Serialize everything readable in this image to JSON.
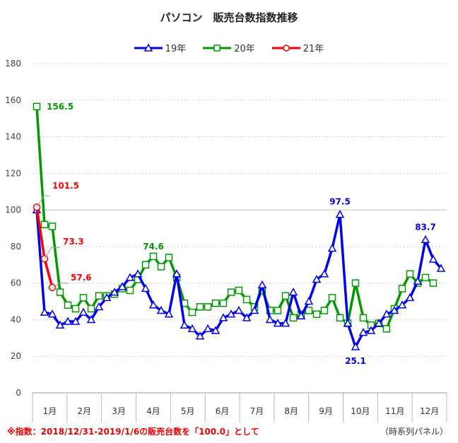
{
  "chart_data": {
    "type": "line",
    "title": "パソコン　販売台数指数推移",
    "ylim": [
      0,
      180
    ],
    "yticks": [
      0,
      20,
      40,
      60,
      80,
      100,
      120,
      140,
      160,
      180
    ],
    "grid": true,
    "legend_position": "top",
    "x_month_labels": [
      "1月",
      "2月",
      "3月",
      "4月",
      "5月",
      "6月",
      "7月",
      "8月",
      "9月",
      "10月",
      "11月",
      "12月"
    ],
    "series": [
      {
        "name": "19年",
        "color": "#0000ee",
        "marker": "triangle",
        "values": [
          100,
          44,
          43,
          37,
          39,
          39,
          44,
          40,
          47,
          52,
          55,
          58,
          63,
          65,
          57,
          48,
          45,
          43,
          65,
          37,
          35,
          31,
          35,
          34,
          41,
          43,
          45,
          41,
          45,
          59,
          40,
          38,
          38,
          55,
          42,
          50,
          62,
          65,
          79,
          97.5,
          38,
          25.1,
          33,
          34,
          38,
          43,
          45,
          48,
          52,
          61,
          83.7,
          73,
          68
        ]
      },
      {
        "name": "20年",
        "color": "#009900",
        "marker": "square",
        "values": [
          156.5,
          92,
          91,
          55,
          48,
          46,
          52,
          46,
          53,
          53,
          54,
          57,
          56,
          62,
          70,
          74.6,
          69,
          74,
          63,
          49,
          44,
          47,
          47,
          49,
          49,
          55,
          56,
          51,
          47,
          56,
          45,
          45,
          53,
          41,
          43,
          45,
          43,
          45,
          52,
          41,
          38,
          60,
          41,
          37,
          38,
          35,
          46,
          57,
          65,
          60,
          63,
          60
        ]
      },
      {
        "name": "21年",
        "color": "#ff0000",
        "marker": "circle",
        "values": [
          101.5,
          73.3,
          57.6
        ]
      }
    ],
    "annotations": [
      {
        "text": "156.5",
        "series": "20年",
        "index": 0
      },
      {
        "text": "74.6",
        "series": "20年",
        "index": 15
      },
      {
        "text": "101.5",
        "series": "21年",
        "index": 0
      },
      {
        "text": "73.3",
        "series": "21年",
        "index": 1
      },
      {
        "text": "57.6",
        "series": "21年",
        "index": 2
      },
      {
        "text": "97.5",
        "series": "19年",
        "index": 39
      },
      {
        "text": "25.1",
        "series": "19年",
        "index": 41
      },
      {
        "text": "83.7",
        "series": "19年",
        "index": 50
      }
    ]
  },
  "footnote": "※指数：2018/12/31-2019/1/6の販売台数を「100.0」として",
  "source": "（時系列パネル）"
}
